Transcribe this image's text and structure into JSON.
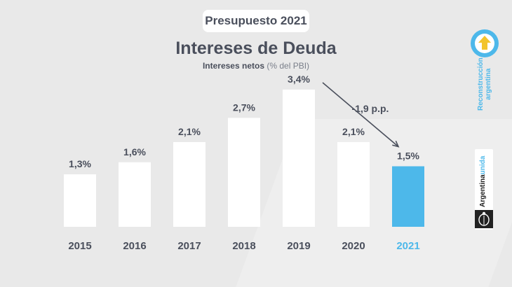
{
  "header": {
    "badge": "Presupuesto 2021",
    "title": "Intereses de Deuda",
    "subtitle_bold": "Intereses netos",
    "subtitle_rest": "(% del PBI)"
  },
  "chart_data": {
    "type": "bar",
    "title": "Intereses de Deuda",
    "categories": [
      "2015",
      "2016",
      "2017",
      "2018",
      "2019",
      "2020",
      "2021"
    ],
    "values": [
      1.3,
      1.6,
      2.1,
      2.7,
      3.4,
      2.1,
      1.5
    ],
    "value_labels": [
      "1,3%",
      "1,6%",
      "2,1%",
      "2,7%",
      "3,4%",
      "2,1%",
      "1,5%"
    ],
    "highlight_index": 6,
    "annotation": "-1,9 p.p.",
    "ylim": [
      0,
      3.4
    ],
    "grid": false,
    "colors": {
      "bar": "#ffffff",
      "highlight": "#4db8ea",
      "text": "#4a4f5c"
    }
  },
  "side": {
    "reconstruccion_line1": "Reconstrucción",
    "reconstruccion_line2": "argentina",
    "argentina": "Argentina",
    "unida": "unida",
    "icons": [
      "arrow-up-circle-icon",
      "coat-of-arms-icon"
    ],
    "colors": {
      "accent": "#4db8ea",
      "logo_bg": "#222222"
    }
  }
}
